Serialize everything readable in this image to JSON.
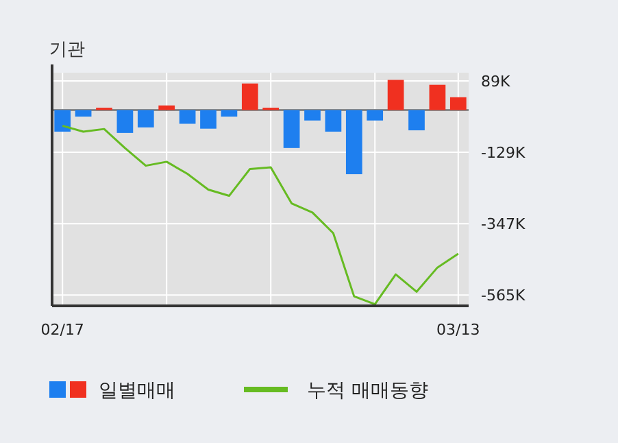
{
  "chart_data": {
    "type": "bar",
    "title": "기관",
    "categories": [
      "02/17",
      null,
      null,
      null,
      null,
      null,
      null,
      null,
      null,
      null,
      null,
      null,
      null,
      null,
      null,
      null,
      null,
      null,
      null,
      "03/13"
    ],
    "series": [
      {
        "name": "일별매매",
        "colors": [
          "#1e7fef",
          "#1e7fef",
          "#f03020",
          "#1e7fef",
          "#1e7fef",
          "#f03020",
          "#1e7fef",
          "#1e7fef",
          "#1e7fef",
          "#f03020",
          "#f03020",
          "#1e7fef",
          "#1e7fef",
          "#1e7fef",
          "#1e7fef",
          "#1e7fef",
          "#f03020",
          "#1e7fef",
          "#f03020",
          "#f03020"
        ],
        "values": [
          -66000,
          -20000,
          7000,
          -70000,
          -53000,
          14000,
          -42000,
          -57000,
          -20000,
          81000,
          7000,
          -116000,
          -32000,
          -66000,
          -196000,
          -32000,
          92000,
          -62000,
          77000,
          39000
        ]
      },
      {
        "name": "누적 매매동향",
        "type": "line",
        "color": "#66bb22",
        "values": [
          -48000,
          -66000,
          -58000,
          -116000,
          -170000,
          -158000,
          -195000,
          -243000,
          -262000,
          -180000,
          -175000,
          -285000,
          -313000,
          -376000,
          -569000,
          -593000,
          -502000,
          -555000,
          -481000,
          -439000
        ]
      }
    ],
    "ylim": [
      -598000,
      114000
    ],
    "yticks": [
      {
        "value": 89000,
        "label": "89K"
      },
      {
        "value": -129000,
        "label": "-129K"
      },
      {
        "value": -347000,
        "label": "-347K"
      },
      {
        "value": -565000,
        "label": "-565K"
      }
    ],
    "grid": true,
    "legend": "bottom"
  }
}
